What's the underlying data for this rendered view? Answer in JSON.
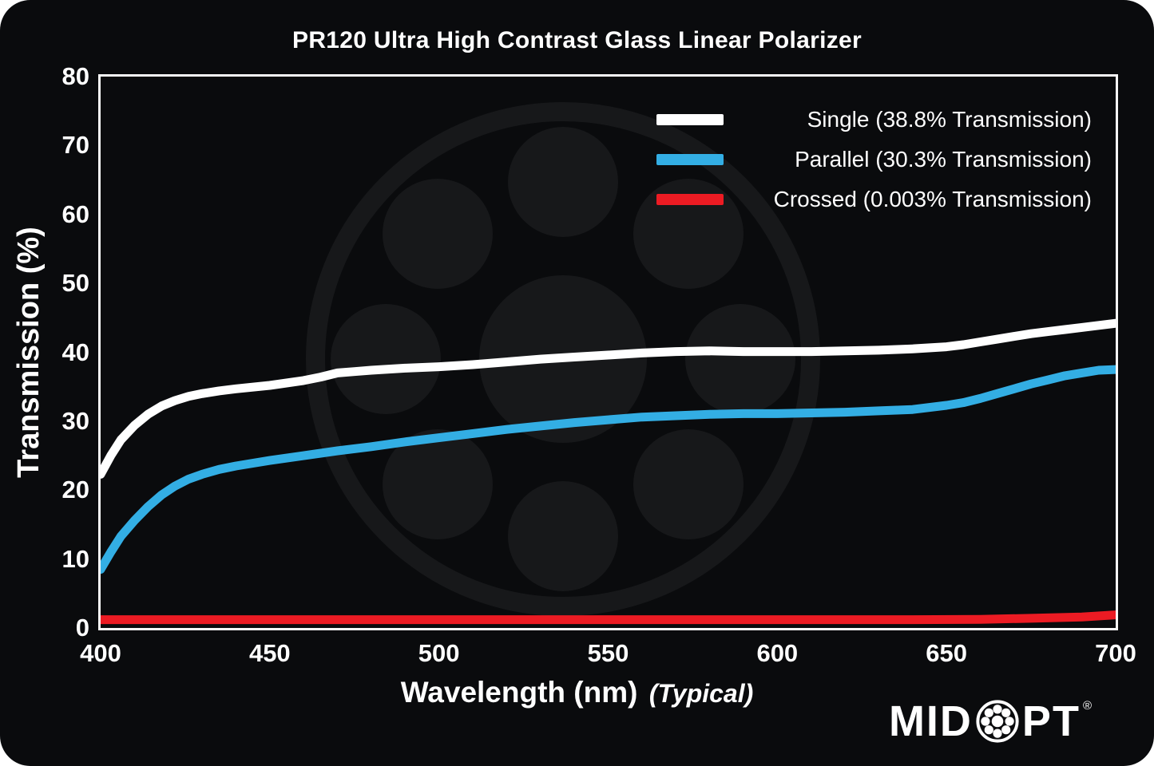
{
  "title": "PR120 Ultra High Contrast Glass Linear Polarizer",
  "axes": {
    "y_label": "Transmission (%)",
    "x_label": "Wavelength (nm)",
    "x_label_note": "(Typical)"
  },
  "brand": {
    "prefix": "MID",
    "suffix": "PT",
    "registered": "®",
    "o_icon": "midopt-rings"
  },
  "colors": {
    "background": "#0a0b0d",
    "axis": "#f8f8f8",
    "watermark": "#17181a",
    "single": "#ffffff",
    "parallel": "#33aee4",
    "crossed": "#ec1b23"
  },
  "chart_data": {
    "type": "line",
    "title": "PR120 Ultra High Contrast Glass Linear Polarizer",
    "xlabel": "Wavelength (nm) (Typical)",
    "ylabel": "Transmission (%)",
    "xlim": [
      400,
      700
    ],
    "ylim": [
      0,
      80
    ],
    "x_ticks": [
      400,
      450,
      500,
      550,
      600,
      650,
      700
    ],
    "y_ticks": [
      0,
      10,
      20,
      30,
      40,
      50,
      60,
      70,
      80
    ],
    "grid": false,
    "legend_position": "upper-right-inside",
    "series": [
      {
        "id": "single",
        "name": "Single (38.8% Transmission)",
        "color": "#ffffff",
        "x": [
          400,
          403,
          406,
          410,
          414,
          418,
          422,
          426,
          430,
          435,
          440,
          450,
          460,
          465,
          470,
          475,
          480,
          490,
          500,
          510,
          520,
          530,
          540,
          550,
          560,
          570,
          580,
          590,
          600,
          610,
          620,
          630,
          640,
          650,
          655,
          660,
          665,
          670,
          675,
          680,
          685,
          690,
          695,
          700
        ],
        "y": [
          22.3,
          25.0,
          27.3,
          29.4,
          31.0,
          32.2,
          33.0,
          33.6,
          34.0,
          34.4,
          34.7,
          35.2,
          35.9,
          36.4,
          37.0,
          37.2,
          37.4,
          37.7,
          37.9,
          38.2,
          38.6,
          39.0,
          39.3,
          39.6,
          39.9,
          40.1,
          40.2,
          40.1,
          40.1,
          40.1,
          40.2,
          40.3,
          40.5,
          40.8,
          41.1,
          41.5,
          41.9,
          42.3,
          42.7,
          43.0,
          43.3,
          43.6,
          43.9,
          44.2
        ]
      },
      {
        "id": "parallel",
        "name": "Parallel (30.3% Transmission)",
        "color": "#33aee4",
        "x": [
          400,
          403,
          406,
          410,
          414,
          418,
          422,
          426,
          430,
          435,
          440,
          450,
          460,
          470,
          480,
          490,
          500,
          510,
          520,
          530,
          540,
          550,
          560,
          570,
          580,
          590,
          600,
          610,
          620,
          630,
          640,
          650,
          655,
          660,
          665,
          670,
          675,
          680,
          685,
          690,
          695,
          700
        ],
        "y": [
          8.5,
          11.0,
          13.3,
          15.6,
          17.6,
          19.3,
          20.6,
          21.6,
          22.3,
          23.0,
          23.5,
          24.3,
          25.0,
          25.7,
          26.3,
          27.0,
          27.6,
          28.2,
          28.8,
          29.3,
          29.8,
          30.2,
          30.6,
          30.8,
          31.0,
          31.1,
          31.1,
          31.2,
          31.3,
          31.5,
          31.7,
          32.3,
          32.7,
          33.3,
          34.0,
          34.7,
          35.4,
          36.0,
          36.6,
          37.0,
          37.4,
          37.5
        ]
      },
      {
        "id": "crossed",
        "name": "Crossed (0.003% Transmission)",
        "color": "#ec1b23",
        "x": [
          400,
          450,
          500,
          550,
          600,
          640,
          660,
          675,
          690,
          700
        ],
        "y": [
          1.2,
          1.2,
          1.2,
          1.2,
          1.2,
          1.2,
          1.25,
          1.4,
          1.6,
          1.9
        ]
      }
    ]
  }
}
